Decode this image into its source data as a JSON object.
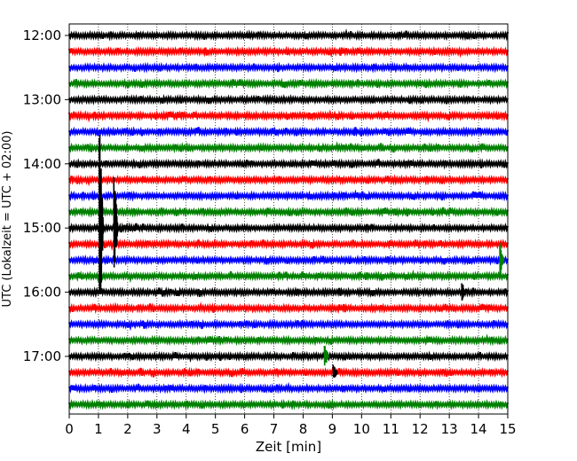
{
  "chart_data": {
    "type": "line",
    "title": "",
    "xlabel": "Zeit  [min]",
    "ylabel": "UTC (Lokalzeit = UTC + 02:00)",
    "xlim": [
      0,
      15
    ],
    "x_ticks": [
      "0",
      "1",
      "2",
      "3",
      "4",
      "5",
      "6",
      "7",
      "8",
      "9",
      "10",
      "11",
      "12",
      "13",
      "14",
      "15"
    ],
    "y_ticks": [
      {
        "label": "12:00",
        "trace": 0
      },
      {
        "label": "13:00",
        "trace": 4
      },
      {
        "label": "14:00",
        "trace": 8
      },
      {
        "label": "15:00",
        "trace": 12
      },
      {
        "label": "16:00",
        "trace": 16
      },
      {
        "label": "17:00",
        "trace": 20
      }
    ],
    "grid": {
      "x": "dotted vertical",
      "y": "none"
    },
    "series_colors": [
      "#000000",
      "#ff0000",
      "#0000ff",
      "#008000"
    ],
    "trace_interval_minutes": 15,
    "trace_start": "12:00",
    "trace_count": 24,
    "events": [
      {
        "trace": 12,
        "x_min": 1.1,
        "amplitude": 7.0,
        "color": "#000000"
      },
      {
        "trace": 12,
        "x_min": 1.6,
        "amplitude": 3.5,
        "color": "#000000"
      },
      {
        "trace": 14,
        "x_min": 14.8,
        "amplitude": 1.1,
        "color": "#008000"
      },
      {
        "trace": 21,
        "x_min": 9.1,
        "amplitude": 0.6,
        "color": "#000000"
      },
      {
        "trace": 20,
        "x_min": 8.8,
        "amplitude": 0.8,
        "color": "#008000"
      },
      {
        "trace": 16,
        "x_min": 13.5,
        "amplitude": 0.7,
        "color": "#000000"
      }
    ]
  }
}
